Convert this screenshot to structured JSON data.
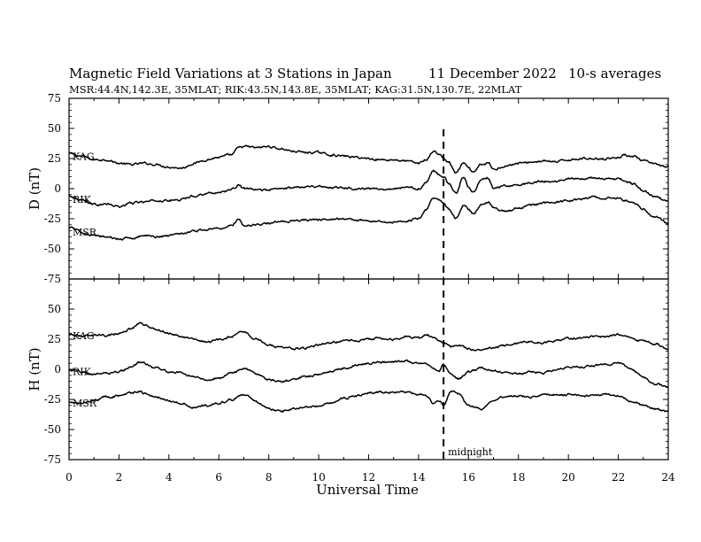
{
  "chart_data": {
    "type": "line",
    "title": "Magnetic Field Variations at 3 Stations in Japan",
    "date": "11 December 2022",
    "averaging": "10-s averages",
    "stations_info": "MSR:44.4N,142.3E, 35MLAT;  RIK:43.5N,143.8E, 35MLAT;  KAG:31.5N,130.7E, 22MLAT",
    "xlabel": "Universal Time",
    "xlim": [
      0,
      24
    ],
    "x_ticks": [
      "0",
      "2",
      "4",
      "6",
      "8",
      "10",
      "12",
      "14",
      "16",
      "18",
      "20",
      "22",
      "24"
    ],
    "grid": false,
    "annotation": {
      "label": "midnight",
      "x": 15
    },
    "panels": [
      {
        "name": "D",
        "ylabel": "D (nT)",
        "ylim": [
          -75,
          75
        ],
        "y_ticks": [
          "75",
          "50",
          "25",
          "0",
          "-25",
          "-50",
          "-75"
        ],
        "series": [
          {
            "name": "KAG",
            "x": [
              0,
              0.5,
              1,
              1.5,
              2,
              2.5,
              3,
              3.5,
              4,
              4.5,
              5,
              5.5,
              6,
              6.5,
              6.8,
              7,
              7.5,
              8,
              8.5,
              9,
              9.5,
              10,
              10.5,
              11,
              11.5,
              12,
              12.5,
              13,
              13.5,
              14,
              14.3,
              14.6,
              14.8,
              15,
              15.2,
              15.5,
              15.8,
              16,
              16.2,
              16.5,
              16.8,
              17,
              17.5,
              18,
              18.5,
              19,
              19.5,
              20,
              20.5,
              21,
              21.5,
              22,
              22.3,
              22.6,
              23,
              23.5,
              24
            ],
            "y": [
              29,
              27,
              24,
              24,
              21,
              20,
              21,
              20,
              18,
              17,
              21,
              24,
              26,
              28,
              34,
              35,
              34,
              35,
              33,
              31,
              30,
              30,
              28,
              27,
              26,
              25,
              24,
              24,
              23,
              21,
              24,
              31,
              29,
              25,
              22,
              13,
              21,
              17,
              13,
              20,
              21,
              16,
              19,
              21,
              22,
              23,
              22,
              24,
              25,
              25,
              25,
              26,
              28,
              27,
              23,
              20,
              18
            ]
          },
          {
            "name": "RIK",
            "x": [
              0,
              0.5,
              1,
              1.5,
              2,
              2.5,
              3,
              3.5,
              4,
              4.5,
              5,
              5.5,
              6,
              6.5,
              6.8,
              7,
              7.5,
              8,
              8.5,
              9,
              9.5,
              10,
              10.5,
              11,
              11.5,
              12,
              12.5,
              13,
              13.5,
              14,
              14.3,
              14.6,
              14.8,
              15,
              15.2,
              15.5,
              15.8,
              16,
              16.2,
              16.5,
              16.8,
              17,
              17.5,
              18,
              18.5,
              19,
              19.5,
              20,
              20.5,
              21,
              21.5,
              22,
              22.3,
              22.6,
              23,
              23.5,
              24
            ],
            "y": [
              -6,
              -9,
              -13,
              -13,
              -15,
              -12,
              -11,
              -10,
              -10,
              -9,
              -6,
              -4,
              -3,
              -1,
              3,
              0,
              -1,
              -1,
              0,
              1,
              2,
              2,
              1,
              1,
              0,
              0,
              0,
              0,
              1,
              0,
              5,
              15,
              12,
              10,
              4,
              -4,
              10,
              2,
              -3,
              7,
              9,
              0,
              2,
              3,
              5,
              6,
              6,
              8,
              8,
              9,
              8,
              8,
              6,
              4,
              -2,
              -7,
              -11
            ]
          },
          {
            "name": "MSR",
            "x": [
              0,
              0.5,
              1,
              1.5,
              2,
              2.5,
              3,
              3.5,
              4,
              4.5,
              5,
              5.5,
              6,
              6.5,
              6.8,
              7,
              7.5,
              8,
              8.5,
              9,
              9.5,
              10,
              10.5,
              11,
              11.5,
              12,
              12.5,
              13,
              13.5,
              14,
              14.3,
              14.6,
              14.8,
              15,
              15.2,
              15.5,
              15.8,
              16,
              16.2,
              16.5,
              16.8,
              17,
              17.5,
              18,
              18.5,
              19,
              19.5,
              20,
              20.5,
              21,
              21.5,
              22,
              22.3,
              22.6,
              23,
              23.5,
              24
            ],
            "y": [
              -32,
              -36,
              -39,
              -40,
              -42,
              -41,
              -39,
              -40,
              -39,
              -37,
              -35,
              -34,
              -33,
              -31,
              -25,
              -31,
              -30,
              -29,
              -27,
              -27,
              -26,
              -26,
              -25,
              -25,
              -26,
              -27,
              -27,
              -28,
              -27,
              -25,
              -18,
              -8,
              -9,
              -12,
              -17,
              -25,
              -14,
              -17,
              -21,
              -13,
              -11,
              -16,
              -19,
              -16,
              -14,
              -12,
              -11,
              -10,
              -9,
              -7,
              -8,
              -8,
              -10,
              -11,
              -17,
              -24,
              -29
            ]
          }
        ]
      },
      {
        "name": "H",
        "ylabel": "H (nT)",
        "ylim": [
          -75,
          75
        ],
        "y_ticks": [
          "50",
          "25",
          "0",
          "-25",
          "-50",
          "-75"
        ],
        "series": [
          {
            "name": "KAG",
            "x": [
              0,
              0.5,
              1,
              1.5,
              2,
              2.5,
              2.8,
              3,
              3.5,
              4,
              4.5,
              5,
              5.5,
              6,
              6.5,
              7,
              7.5,
              8,
              8.5,
              9,
              9.5,
              10,
              10.5,
              11,
              11.5,
              12,
              12.5,
              13,
              13.5,
              14,
              14.3,
              14.6,
              14.8,
              15,
              15.3,
              15.6,
              16,
              16.5,
              17,
              17.5,
              18,
              18.5,
              19,
              19.5,
              20,
              20.5,
              21,
              21.5,
              22,
              22.5,
              23,
              23.5,
              24
            ],
            "y": [
              29,
              28,
              29,
              28,
              30,
              34,
              38,
              37,
              33,
              30,
              27,
              25,
              23,
              24,
              27,
              31,
              25,
              20,
              18,
              17,
              18,
              20,
              22,
              24,
              24,
              25,
              26,
              25,
              27,
              26,
              29,
              26,
              24,
              22,
              19,
              20,
              17,
              16,
              18,
              20,
              22,
              23,
              22,
              24,
              26,
              26,
              27,
              27,
              29,
              27,
              23,
              21,
              17
            ]
          },
          {
            "name": "RIK",
            "x": [
              0,
              0.5,
              1,
              1.5,
              2,
              2.5,
              2.8,
              3,
              3.5,
              4,
              4.5,
              5,
              5.5,
              6,
              6.5,
              7,
              7.5,
              8,
              8.5,
              9,
              9.5,
              10,
              10.5,
              11,
              11.5,
              12,
              12.5,
              13,
              13.5,
              14,
              14.3,
              14.6,
              14.8,
              15,
              15.3,
              15.6,
              16,
              16.5,
              17,
              17.5,
              18,
              18.5,
              19,
              19.5,
              20,
              20.5,
              21,
              21.5,
              22,
              22.5,
              23,
              23.5,
              24
            ],
            "y": [
              -1,
              -2,
              -4,
              -3,
              -2,
              2,
              5,
              5,
              1,
              -2,
              -3,
              -6,
              -9,
              -7,
              -3,
              1,
              -4,
              -9,
              -10,
              -8,
              -6,
              -4,
              -2,
              1,
              3,
              5,
              6,
              6,
              7,
              5,
              5,
              1,
              -2,
              4,
              -4,
              -8,
              -2,
              1,
              -1,
              -3,
              -4,
              -2,
              -3,
              -1,
              2,
              2,
              3,
              4,
              5,
              0,
              -7,
              -12,
              -15
            ]
          },
          {
            "name": "MSR",
            "x": [
              0,
              0.5,
              1,
              1.5,
              2,
              2.5,
              2.8,
              3,
              3.5,
              4,
              4.5,
              5,
              5.5,
              6,
              6.5,
              7,
              7.5,
              8,
              8.5,
              9,
              9.5,
              10,
              10.5,
              11,
              11.5,
              12,
              12.5,
              13,
              13.5,
              14,
              14.3,
              14.6,
              14.8,
              15,
              15.3,
              15.6,
              16,
              16.5,
              17,
              17.5,
              18,
              18.5,
              19,
              19.5,
              20,
              20.5,
              21,
              21.5,
              22,
              22.5,
              23,
              23.5,
              24
            ],
            "y": [
              -27,
              -28,
              -26,
              -23,
              -22,
              -20,
              -18,
              -20,
              -23,
              -26,
              -28,
              -32,
              -30,
              -28,
              -25,
              -21,
              -27,
              -33,
              -35,
              -33,
              -31,
              -30,
              -28,
              -24,
              -22,
              -20,
              -19,
              -19,
              -19,
              -21,
              -22,
              -28,
              -26,
              -30,
              -18,
              -20,
              -30,
              -33,
              -26,
              -23,
              -22,
              -23,
              -21,
              -21,
              -21,
              -22,
              -22,
              -21,
              -22,
              -26,
              -30,
              -33,
              -35
            ]
          }
        ]
      }
    ]
  }
}
